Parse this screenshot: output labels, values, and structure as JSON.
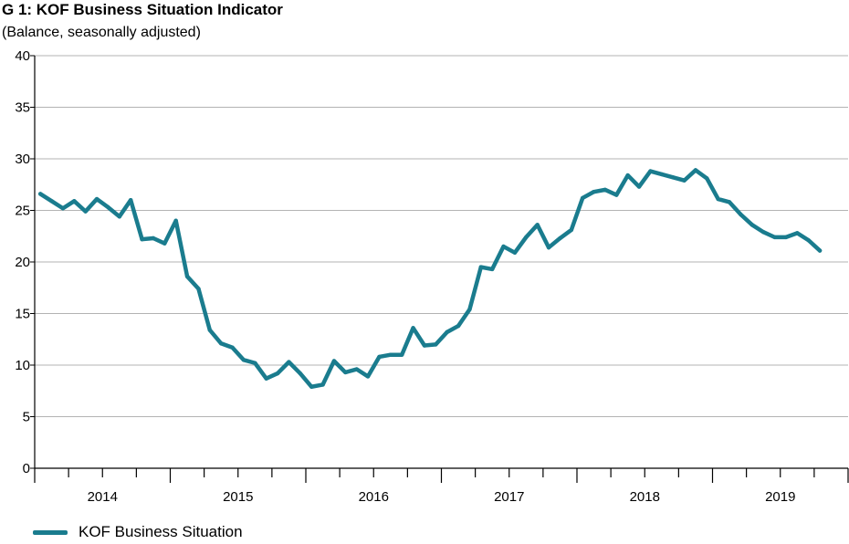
{
  "chart_data": {
    "type": "line",
    "title": "G 1: KOF Business Situation Indicator",
    "subtitle": "(Balance, seasonally adjusted)",
    "xlabel": "",
    "ylabel": "",
    "ylim": [
      0,
      40
    ],
    "yticks": [
      0,
      5,
      10,
      15,
      20,
      25,
      30,
      35,
      40
    ],
    "year_labels": [
      "2014",
      "2015",
      "2016",
      "2017",
      "2018",
      "2019"
    ],
    "xlim": [
      "2014-01",
      "2019-12"
    ],
    "grid": "horizontal",
    "legend_position": "bottom-left",
    "x": [
      "2014-01",
      "2014-02",
      "2014-03",
      "2014-04",
      "2014-05",
      "2014-06",
      "2014-07",
      "2014-08",
      "2014-09",
      "2014-10",
      "2014-11",
      "2014-12",
      "2015-01",
      "2015-02",
      "2015-03",
      "2015-04",
      "2015-05",
      "2015-06",
      "2015-07",
      "2015-08",
      "2015-09",
      "2015-10",
      "2015-11",
      "2015-12",
      "2016-01",
      "2016-02",
      "2016-03",
      "2016-04",
      "2016-05",
      "2016-06",
      "2016-07",
      "2016-08",
      "2016-09",
      "2016-10",
      "2016-11",
      "2016-12",
      "2017-01",
      "2017-02",
      "2017-03",
      "2017-04",
      "2017-05",
      "2017-06",
      "2017-07",
      "2017-08",
      "2017-09",
      "2017-10",
      "2017-11",
      "2017-12",
      "2018-01",
      "2018-02",
      "2018-03",
      "2018-04",
      "2018-05",
      "2018-06",
      "2018-07",
      "2018-08",
      "2018-09",
      "2018-10",
      "2018-11",
      "2018-12",
      "2019-01",
      "2019-02",
      "2019-03",
      "2019-04",
      "2019-05",
      "2019-06",
      "2019-07",
      "2019-08",
      "2019-09",
      "2019-10"
    ],
    "series": [
      {
        "name": "KOF Business Situation",
        "color": "#1a7c8e",
        "values": [
          26.6,
          25.9,
          25.2,
          25.9,
          24.9,
          26.1,
          25.3,
          24.4,
          26.0,
          22.2,
          22.3,
          21.8,
          24.0,
          18.6,
          17.4,
          13.4,
          12.1,
          11.7,
          10.5,
          10.2,
          8.7,
          9.2,
          10.3,
          9.2,
          7.9,
          8.1,
          10.4,
          9.3,
          9.6,
          8.9,
          10.8,
          11.0,
          11.0,
          13.6,
          11.9,
          12.0,
          13.2,
          13.8,
          15.4,
          19.5,
          19.3,
          21.5,
          20.9,
          22.4,
          23.6,
          21.4,
          22.3,
          23.1,
          26.2,
          26.8,
          27.0,
          26.5,
          28.4,
          27.3,
          28.8,
          28.5,
          28.2,
          27.9,
          28.9,
          28.1,
          26.1,
          25.8,
          24.6,
          23.6,
          22.9,
          22.4,
          22.4,
          22.8,
          22.1,
          21.1
        ]
      }
    ]
  }
}
